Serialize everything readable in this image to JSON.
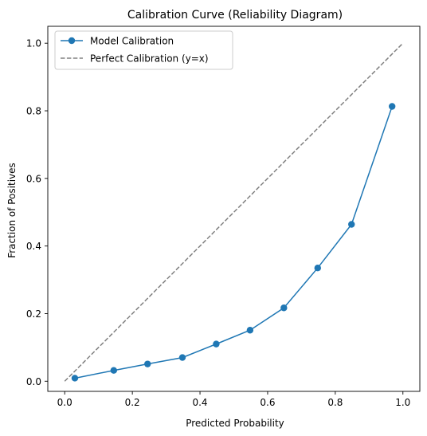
{
  "chart_data": {
    "type": "line",
    "title": "Calibration Curve (Reliability Diagram)",
    "xlabel": "Predicted Probability",
    "ylabel": "Fraction of Positives",
    "xlim": [
      -0.05,
      1.05
    ],
    "ylim": [
      -0.03,
      1.05
    ],
    "xticks": [
      "0.0",
      "0.2",
      "0.4",
      "0.6",
      "0.8",
      "1.0"
    ],
    "yticks": [
      "0.0",
      "0.2",
      "0.4",
      "0.6",
      "0.8",
      "1.0"
    ],
    "grid": false,
    "legend_position": "top-left",
    "series": [
      {
        "name": "Model Calibration",
        "color": "#1f77b4",
        "style": "solid-with-markers",
        "x": [
          0.03,
          0.145,
          0.245,
          0.348,
          0.448,
          0.548,
          0.648,
          0.748,
          0.848,
          0.968
        ],
        "y": [
          0.009,
          0.032,
          0.051,
          0.07,
          0.11,
          0.151,
          0.217,
          0.335,
          0.464,
          0.813
        ]
      },
      {
        "name": "Perfect Calibration (y=x)",
        "color": "#808080",
        "style": "dashed",
        "x": [
          0.0,
          1.0
        ],
        "y": [
          0.0,
          1.0
        ]
      }
    ]
  }
}
